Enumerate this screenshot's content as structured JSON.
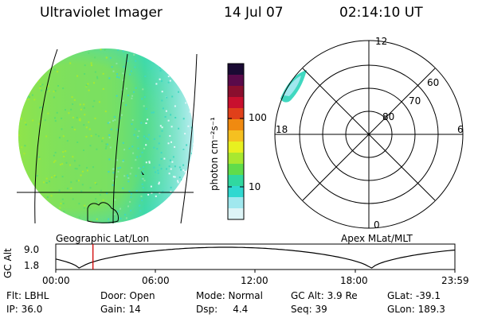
{
  "header": {
    "instrument": "Ultraviolet Imager",
    "date": "14 Jul 07",
    "time": "02:14:10 UT"
  },
  "colorbar": {
    "label": "photon cm⁻²s⁻¹",
    "ticks": [
      "100",
      "10"
    ],
    "colors": [
      "#1a0a33",
      "#5a0a4a",
      "#8a0f2e",
      "#c8102e",
      "#e0401a",
      "#f08a10",
      "#f5c020",
      "#e8f020",
      "#a8e830",
      "#60dc4a",
      "#30d8a0",
      "#30d8d0",
      "#a0e8ee",
      "#ddf4f6"
    ]
  },
  "left_panel": {
    "caption": "Geographic Lat/Lon",
    "colors": {
      "main": "#78e060",
      "edge": "#40d8c0",
      "pale": "#c8f0f4"
    }
  },
  "right_panel": {
    "caption": "Apex MLat/MLT",
    "lat_labels": [
      "80",
      "70",
      "60"
    ],
    "mlt_labels": {
      "top": "12",
      "left": "18",
      "right": "6",
      "bottom": "0"
    }
  },
  "altitude_plot": {
    "ylabel": "GC Alt",
    "yticks": [
      "9.0",
      "1.8"
    ],
    "xticks": [
      "00:00",
      "06:00",
      "12:00",
      "18:00",
      "23:59"
    ],
    "marker_time_fraction": 0.0932,
    "marker_color": "#d00000"
  },
  "info": {
    "flt": "Flt: LBHL",
    "door": "Door: Open",
    "mode": "Mode: Normal",
    "gcalt": "GC Alt: 3.9 Re",
    "glat": "GLat: -39.1",
    "ip": "IP: 36.0",
    "gain": "Gain: 14",
    "dsp": "Dsp:     4.4",
    "seq": "Seq: 39",
    "glon": "GLon: 189.3"
  }
}
